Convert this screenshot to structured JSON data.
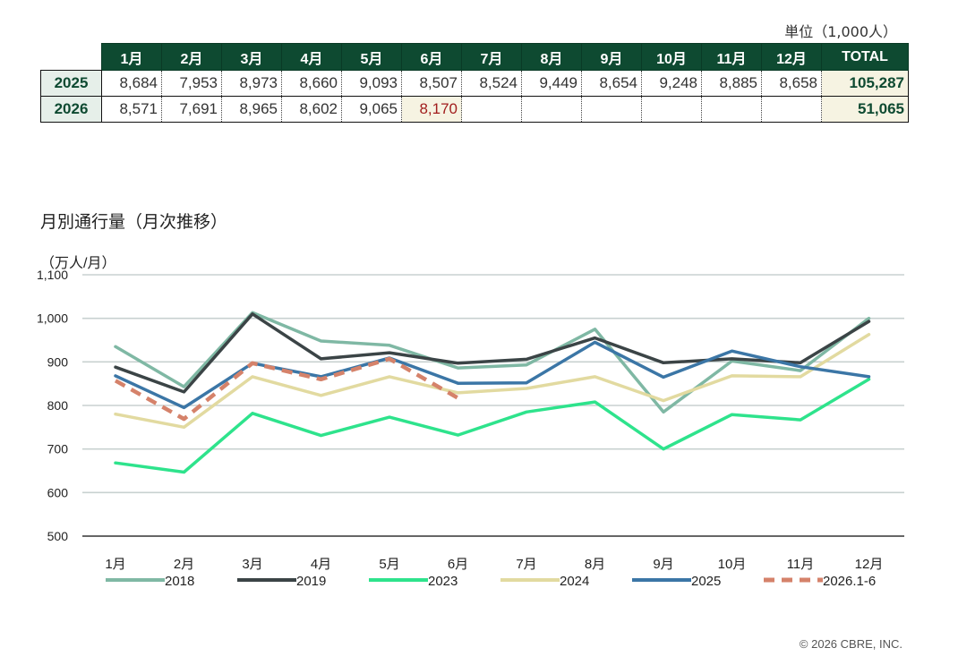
{
  "table": {
    "unit": "単位（1,000人）",
    "headers": [
      "1月",
      "2月",
      "3月",
      "4月",
      "5月",
      "6月",
      "7月",
      "8月",
      "9月",
      "10月",
      "11月",
      "12月",
      "TOTAL"
    ],
    "rows": [
      {
        "year": "2025",
        "cells": [
          "8,684",
          "7,953",
          "8,973",
          "8,660",
          "9,093",
          "8,507",
          "8,524",
          "9,449",
          "8,654",
          "9,248",
          "8,885",
          "8,658"
        ],
        "total": "105,287"
      },
      {
        "year": "2026",
        "cells": [
          "8,571",
          "7,691",
          "8,965",
          "8,602",
          "9,065",
          "8,170",
          "",
          "",
          "",
          "",
          "",
          ""
        ],
        "total": "51,065"
      }
    ]
  },
  "colors": {
    "header_bg": "#0e4a31",
    "highlight_text": "#a11d1d",
    "grid": "#c8d1d0"
  },
  "chart_data": {
    "type": "line",
    "title": "月別通行量（月次推移）",
    "ylabel": "（万人/月）",
    "xlabel": "",
    "categories": [
      "1月",
      "2月",
      "3月",
      "4月",
      "5月",
      "6月",
      "7月",
      "8月",
      "9月",
      "10月",
      "11月",
      "12月"
    ],
    "ylim": [
      500,
      1100
    ],
    "yticks": [
      "500",
      "600",
      "700",
      "800",
      "900",
      "1,000",
      "1,100"
    ],
    "grid": true,
    "legend_position": "bottom",
    "series": [
      {
        "name": "2018",
        "color": "#7fb8a4",
        "dashed": false,
        "values": [
          935,
          843,
          1013,
          948,
          938,
          886,
          893,
          975,
          785,
          902,
          880,
          1000
        ]
      },
      {
        "name": "2019",
        "color": "#3b4446",
        "dashed": false,
        "values": [
          888,
          831,
          1010,
          907,
          921,
          897,
          906,
          955,
          898,
          907,
          898,
          993
        ]
      },
      {
        "name": "2023",
        "color": "#2ee38c",
        "dashed": false,
        "values": [
          668,
          647,
          782,
          731,
          773,
          732,
          785,
          808,
          700,
          779,
          767,
          860
        ]
      },
      {
        "name": "2024",
        "color": "#e2daa0",
        "dashed": false,
        "values": [
          780,
          750,
          866,
          823,
          866,
          829,
          839,
          866,
          811,
          868,
          866,
          963
        ]
      },
      {
        "name": "2025",
        "color": "#3b76a6",
        "dashed": false,
        "values": [
          868,
          795,
          897,
          866,
          909,
          851,
          852,
          945,
          865,
          925,
          889,
          866
        ]
      },
      {
        "name": "2026.1-6",
        "color": "#d5826a",
        "dashed": true,
        "values": [
          857,
          769,
          897,
          860,
          907,
          817,
          null,
          null,
          null,
          null,
          null,
          null
        ]
      }
    ]
  },
  "footer": {
    "copyright": "© 2026 CBRE, INC."
  }
}
